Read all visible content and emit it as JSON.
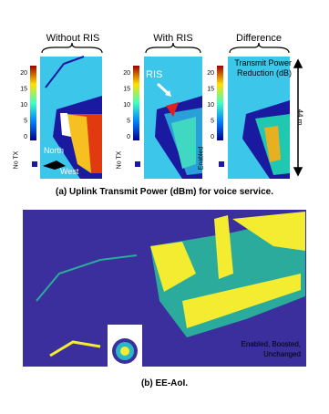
{
  "panels": [
    {
      "title": "Without RIS",
      "ticks": [
        0,
        5,
        10,
        15,
        20
      ],
      "bottom_label": "No TX"
    },
    {
      "title": "With RIS",
      "ticks": [
        0,
        5,
        10,
        15,
        20
      ],
      "bottom_label": "No TX"
    },
    {
      "title": "Difference",
      "ticks": [
        0,
        5,
        10,
        15,
        20
      ],
      "bottom_label": "Enabled"
    }
  ],
  "annotations": {
    "north": "North",
    "west": "West",
    "ris": "RIS",
    "reduction": "Transmit Power Reduction (dB)",
    "scale": "44 m"
  },
  "caption_a": "(a) Uplink Transmit Power (dBm) for voice service.",
  "legend_b": "Enabled, Boosted, Unchanged",
  "caption_b": "(b) EE-AoI."
}
